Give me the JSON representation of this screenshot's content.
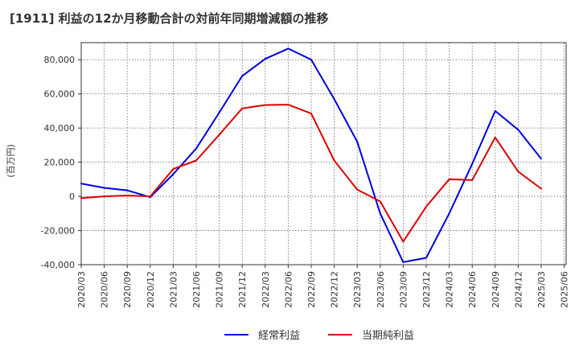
{
  "chart_data": {
    "type": "line",
    "title": "[1911]  利益の12か月移動合計の対前年同期増減額の推移",
    "ylabel": "(百万円)",
    "xlabel": "",
    "ylim": [
      -40000,
      90000
    ],
    "yticks": [
      -40000,
      -20000,
      0,
      20000,
      40000,
      60000,
      80000
    ],
    "ytick_labels": [
      "-40,000",
      "-20,000",
      "0",
      "20,000",
      "40,000",
      "60,000",
      "80,000"
    ],
    "grid": true,
    "legend_position": "bottom",
    "categories": [
      "2020/03",
      "2020/06",
      "2020/09",
      "2020/12",
      "2021/03",
      "2021/06",
      "2021/09",
      "2021/12",
      "2022/03",
      "2022/06",
      "2022/09",
      "2022/12",
      "2023/03",
      "2023/06",
      "2023/09",
      "2023/12",
      "2024/03",
      "2024/06",
      "2024/09",
      "2024/12",
      "2025/03",
      "2025/06"
    ],
    "series": [
      {
        "name": "経常利益",
        "color": "#0000dd",
        "values": [
          7500,
          5000,
          3500,
          -500,
          13000,
          28000,
          49000,
          70500,
          80500,
          86500,
          80000,
          57000,
          32000,
          -10000,
          -38500,
          -36000,
          -10000,
          19000,
          50000,
          39000,
          22000,
          null
        ]
      },
      {
        "name": "当期純利益",
        "color": "#dd0000",
        "values": [
          -1000,
          0,
          500,
          0,
          16000,
          21000,
          36000,
          51500,
          53500,
          53700,
          48500,
          21000,
          4000,
          -3000,
          -26500,
          -6000,
          10000,
          9500,
          34500,
          14500,
          4500,
          null
        ]
      }
    ]
  }
}
